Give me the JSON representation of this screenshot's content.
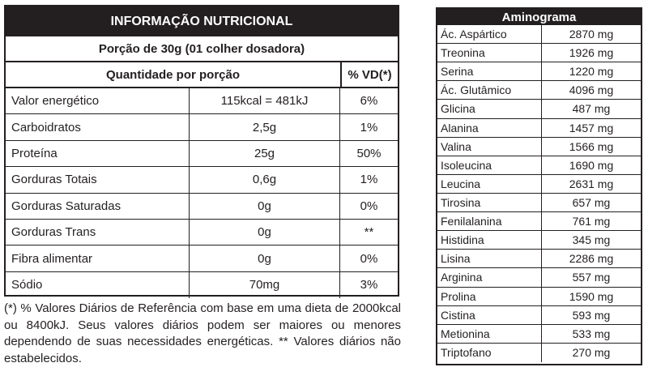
{
  "nutrition": {
    "title": "INFORMAÇÃO NUTRICIONAL",
    "portion": "Porção de 30g (01 colher dosadora)",
    "header_quantity": "Quantidade por porção",
    "header_vd": "% VD(*)",
    "rows": [
      {
        "name": "Valor energético",
        "amount": "115kcal = 481kJ",
        "vd": "6%"
      },
      {
        "name": "Carboidratos",
        "amount": "2,5g",
        "vd": "1%"
      },
      {
        "name": "Proteína",
        "amount": "25g",
        "vd": "50%"
      },
      {
        "name": "Gorduras Totais",
        "amount": "0,6g",
        "vd": "1%"
      },
      {
        "name": "Gorduras Saturadas",
        "amount": "0g",
        "vd": "0%"
      },
      {
        "name": "Gorduras Trans",
        "amount": "0g",
        "vd": "**"
      },
      {
        "name": "Fibra alimentar",
        "amount": "0g",
        "vd": "0%"
      },
      {
        "name": "Sódio",
        "amount": "70mg",
        "vd": "3%"
      }
    ],
    "footnote": "(*) % Valores Diários de Referência com base em uma dieta de 2000kcal ou 8400kJ. Seus valores diários podem ser maiores ou menores dependendo de suas necessidades energéticas. ** Valores diários não estabelecidos."
  },
  "aminogram": {
    "title": "Aminograma",
    "rows": [
      {
        "name": "Ác. Aspártico",
        "amount": "2870 mg"
      },
      {
        "name": "Treonina",
        "amount": "1926 mg"
      },
      {
        "name": "Serina",
        "amount": "1220 mg"
      },
      {
        "name": "Ác. Glutâmico",
        "amount": "4096 mg"
      },
      {
        "name": "Glicina",
        "amount": "487 mg"
      },
      {
        "name": "Alanina",
        "amount": "1457 mg"
      },
      {
        "name": "Valina",
        "amount": "1566 mg"
      },
      {
        "name": "Isoleucina",
        "amount": "1690 mg"
      },
      {
        "name": "Leucina",
        "amount": "2631 mg"
      },
      {
        "name": "Tirosina",
        "amount": "657 mg"
      },
      {
        "name": "Fenilalanina",
        "amount": "761 mg"
      },
      {
        "name": "Histidina",
        "amount": "345 mg"
      },
      {
        "name": "Lisina",
        "amount": "2286 mg"
      },
      {
        "name": "Arginina",
        "amount": "557 mg"
      },
      {
        "name": "Prolina",
        "amount": "1590 mg"
      },
      {
        "name": "Cistina",
        "amount": "593 mg"
      },
      {
        "name": "Metionina",
        "amount": "533 mg"
      },
      {
        "name": "Triptofano",
        "amount": "270 mg"
      }
    ]
  }
}
